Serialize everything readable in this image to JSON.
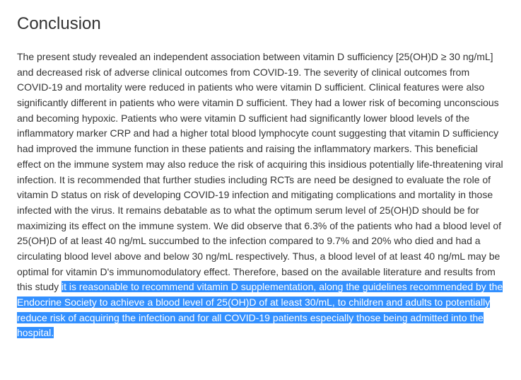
{
  "heading": "Conclusion",
  "body_text": "The present study revealed an independent association between vitamin D sufficiency [25(OH)D ≥ 30 ng/mL] and decreased risk of adverse clinical outcomes from COVID-19. The severity of clinical outcomes from COVID-19 and mortality were reduced in patients who were vitamin D sufficient. Clinical features were also significantly different in patients who were vitamin D sufficient. They had a lower risk of becoming unconscious and becoming hypoxic. Patients who were vitamin D sufficient had significantly lower blood levels of the inflammatory marker CRP and had a higher total blood lymphocyte count suggesting that vitamin D sufficiency had improved the immune function in these patients and raising the inflammatory markers. This beneficial effect on the immune system may also reduce the risk of acquiring this insidious potentially life-threatening viral infection. It is recommended that further studies including RCTs are need be designed to evaluate the role of vitamin D status on risk of developing COVID-19 infection and mitigating complications and mortality in those infected with the virus. It remains debatable as to what the optimum serum level of 25(OH)D should be for maximizing its effect on the immune system. We did observe that 6.3% of the patients who had a blood level of 25(OH)D of at least 40 ng/mL succumbed to the infection compared to 9.7% and 20% who died and had a circulating blood level above and below 30 ng/mL respectively. Thus, a blood level of at least 40 ng/mL may be optimal for vitamin D's immunomodulatory effect. Therefore, based on the available literature and results from this study ",
  "highlighted_text": "it is reasonable to recommend vitamin D supplementation, along the guidelines recommended by the Endocrine Society to achieve a blood level of 25(OH)D of at least 30/mL, to children and adults to potentially reduce risk of acquiring the infection and for all COVID-19 patients especially those being admitted into the hospital.",
  "highlight_bg_color": "#3390ff",
  "highlight_text_color": "#ffffff",
  "body_color": "#333333",
  "background_color": "#ffffff",
  "heading_fontsize": 24,
  "body_fontsize": 14,
  "line_height": 1.55
}
